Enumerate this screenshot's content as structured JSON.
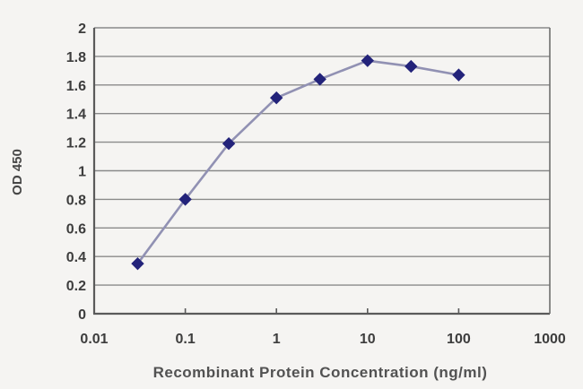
{
  "chart_data": {
    "type": "line",
    "title": "",
    "xlabel": "Recombinant Protein Concentration (ng/ml)",
    "ylabel": "OD 450",
    "x_scale": "log",
    "x": [
      0.03,
      0.1,
      0.3,
      1,
      3,
      10,
      30,
      100
    ],
    "y": [
      0.35,
      0.8,
      1.19,
      1.51,
      1.64,
      1.77,
      1.73,
      1.67
    ],
    "xlim": [
      0.01,
      1000
    ],
    "ylim": [
      0,
      2
    ],
    "x_ticks": [
      0.01,
      0.1,
      1,
      10,
      100,
      1000
    ],
    "x_tick_labels": [
      "0.01",
      "0.1",
      "1",
      "10",
      "100",
      "1000"
    ],
    "x_minor_tick_marks": [
      0.1,
      1,
      10,
      100
    ],
    "y_ticks": [
      0,
      0.2,
      0.4,
      0.6,
      0.8,
      1,
      1.2,
      1.4,
      1.6,
      1.8,
      2
    ],
    "y_tick_labels": [
      "0",
      "0.2",
      "0.4",
      "0.6",
      "0.8",
      "1",
      "1.2",
      "1.4",
      "1.6",
      "1.8",
      "2"
    ],
    "grid": true,
    "legend": "none",
    "marker": "diamond",
    "colors": {
      "background": "#f5f4f2",
      "gridline": "#8a8a8a",
      "axis": "#5a5a5a",
      "right_border": "#6e6e6e",
      "line": "#9191b3",
      "marker": "#23237a",
      "tick_text": "#3d3d3d",
      "title_text": "#525252"
    }
  }
}
